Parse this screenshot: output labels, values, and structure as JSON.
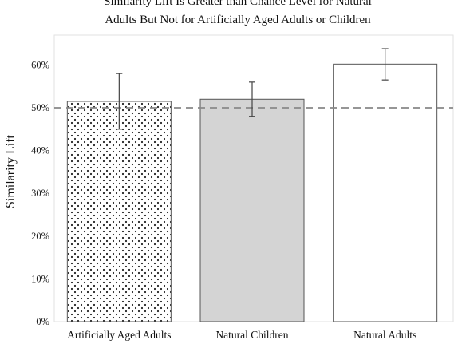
{
  "chart_data": {
    "type": "bar",
    "title_lines": [
      "Similarity Lift Is Greater than Chance Level for Natural",
      "Adults But Not for Artificially Aged Adults or Children"
    ],
    "xlabel": "",
    "ylabel": "Similarity Lift",
    "ylim": [
      0,
      65
    ],
    "yticks": [
      "0%",
      "10%",
      "20%",
      "30%",
      "40%",
      "50%",
      "60%"
    ],
    "ytick_values": [
      0,
      10,
      20,
      30,
      40,
      50,
      60
    ],
    "categories": [
      "Artificially Aged Adults",
      "Natural Children",
      "Natural Adults"
    ],
    "values": [
      51.5,
      52,
      60.2
    ],
    "error_low": [
      45,
      48,
      56.5
    ],
    "error_high": [
      58,
      56,
      63.8
    ],
    "bar_styles": [
      "dotted",
      "gray",
      "white"
    ],
    "bar_colors": [
      "#ffffff",
      "#d4d4d4",
      "#ffffff"
    ],
    "reference_line": {
      "value": 50,
      "style": "dashed",
      "color": "#888888"
    },
    "grid": false
  }
}
